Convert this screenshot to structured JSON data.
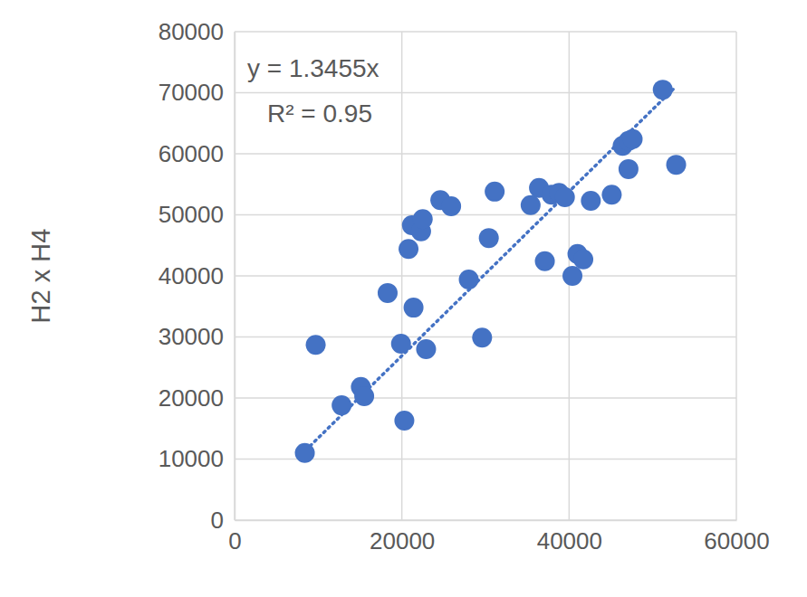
{
  "chart_data": {
    "type": "scatter",
    "y_label": "H2 x H4",
    "annotations": [
      "y = 1.3455x",
      "R² = 0.95"
    ],
    "x": [
      8400,
      9700,
      12800,
      15100,
      15500,
      18300,
      19900,
      20300,
      20800,
      21200,
      21400,
      22300,
      22500,
      22900,
      24600,
      25900,
      28000,
      29600,
      30400,
      31100,
      35400,
      36400,
      37100,
      37900,
      38800,
      39500,
      40400,
      41000,
      41700,
      42600,
      45100,
      46400,
      47100,
      47600,
      47100,
      51200,
      52800
    ],
    "values": [
      11000,
      28700,
      18800,
      21800,
      20300,
      37200,
      28900,
      16300,
      44400,
      48300,
      34800,
      47300,
      49300,
      28000,
      52400,
      51400,
      39400,
      29900,
      46200,
      53800,
      51600,
      54400,
      42400,
      53300,
      53600,
      52900,
      40000,
      43600,
      42700,
      52300,
      53300,
      61300,
      62100,
      62400,
      57500,
      70500,
      58200
    ],
    "trendline": {
      "x": [
        8500,
        52500
      ],
      "y": [
        11437,
        70639
      ]
    },
    "color": "#4472c4",
    "marker": "circle",
    "line_style": "dotted",
    "xlim": [
      0,
      60000
    ],
    "xticks": [
      0,
      20000,
      40000,
      60000
    ],
    "ylim": [
      0,
      80000
    ],
    "yticks": [
      0,
      10000,
      20000,
      30000,
      40000,
      50000,
      60000,
      70000,
      80000
    ],
    "grid": true
  }
}
